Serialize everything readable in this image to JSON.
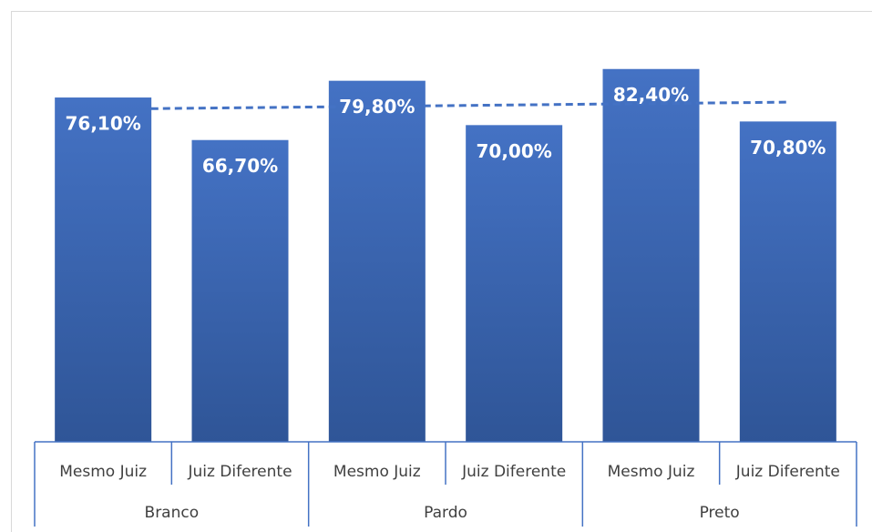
{
  "chart_data": {
    "type": "bar",
    "categories": [
      "Mesmo Juiz",
      "Juiz Diferente",
      "Mesmo Juiz",
      "Juiz Diferente",
      "Mesmo Juiz",
      "Juiz Diferente"
    ],
    "groups": [
      "Branco",
      "Pardo",
      "Preto"
    ],
    "values": [
      76.1,
      66.7,
      79.8,
      70.0,
      82.4,
      70.8
    ],
    "value_labels": [
      "76,10%",
      "66,70%",
      "79,80%",
      "70,00%",
      "82,40%",
      "70,80%"
    ],
    "color": "#4472c4",
    "ylim": [
      0,
      90
    ],
    "trendline": true
  }
}
